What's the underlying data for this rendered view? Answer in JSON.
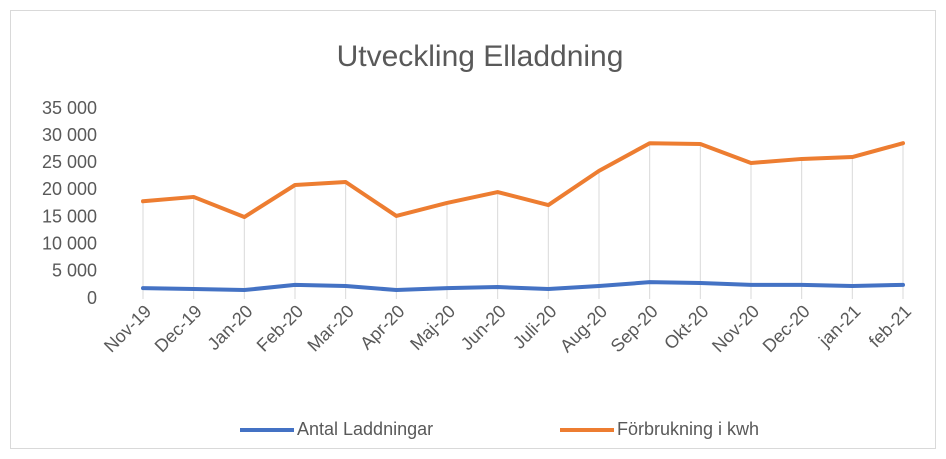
{
  "chart_data": {
    "type": "line",
    "title": "Utveckling Elladdning",
    "categories": [
      "Nov-19",
      "Dec-19",
      "Jan-20",
      "Feb-20",
      "Mar-20",
      "Apr-20",
      "Maj-20",
      "Jun-20",
      "Juli-20",
      "Aug-20",
      "Sep-20",
      "Okt-20",
      "Nov-20",
      "Dec-20",
      "jan-21",
      "feb-21"
    ],
    "series": [
      {
        "name": "Antal Laddningar",
        "color": "#4472c4",
        "values": [
          2000,
          1850,
          1650,
          2600,
          2400,
          1650,
          2000,
          2200,
          1850,
          2400,
          3100,
          2950,
          2600,
          2600,
          2400,
          2600
        ]
      },
      {
        "name": "Förbrukning i kwh",
        "color": "#ed7d31",
        "values": [
          18000,
          18800,
          15100,
          21000,
          21550,
          15300,
          17700,
          19700,
          17300,
          23600,
          28700,
          28550,
          25050,
          25800,
          26150,
          28700
        ]
      }
    ],
    "ylim": [
      0,
      35000
    ],
    "yticks": [
      {
        "value": 0,
        "label": "0"
      },
      {
        "value": 5000,
        "label": "5 000"
      },
      {
        "value": 10000,
        "label": "10 000"
      },
      {
        "value": 15000,
        "label": "15 000"
      },
      {
        "value": 20000,
        "label": "20 000"
      },
      {
        "value": 25000,
        "label": "25 000"
      },
      {
        "value": 30000,
        "label": "30 000"
      },
      {
        "value": 35000,
        "label": "35 000"
      }
    ],
    "drop_lines": true,
    "legend": "bottom"
  }
}
